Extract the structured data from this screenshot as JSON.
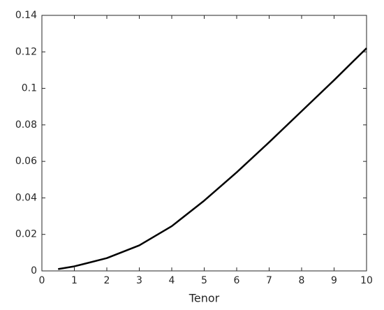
{
  "chart_data": {
    "type": "line",
    "xlabel": "Tenor",
    "x": [
      0.5,
      1,
      2,
      3,
      4,
      5,
      6,
      7,
      8,
      9,
      10
    ],
    "series": [
      {
        "color": "#000000",
        "values": [
          0.001,
          0.0025,
          0.007,
          0.014,
          0.0245,
          0.0385,
          0.054,
          0.0705,
          0.0875,
          0.1045,
          0.122
        ]
      }
    ],
    "xlim": [
      0,
      10
    ],
    "xticks": [
      0,
      1,
      2,
      3,
      4,
      5,
      6,
      7,
      8,
      9,
      10
    ],
    "ylim": [
      0,
      0.14
    ],
    "yticks": [
      0,
      0.02,
      0.04,
      0.06,
      0.08,
      0.1,
      0.12,
      0.14
    ],
    "grid": false
  }
}
